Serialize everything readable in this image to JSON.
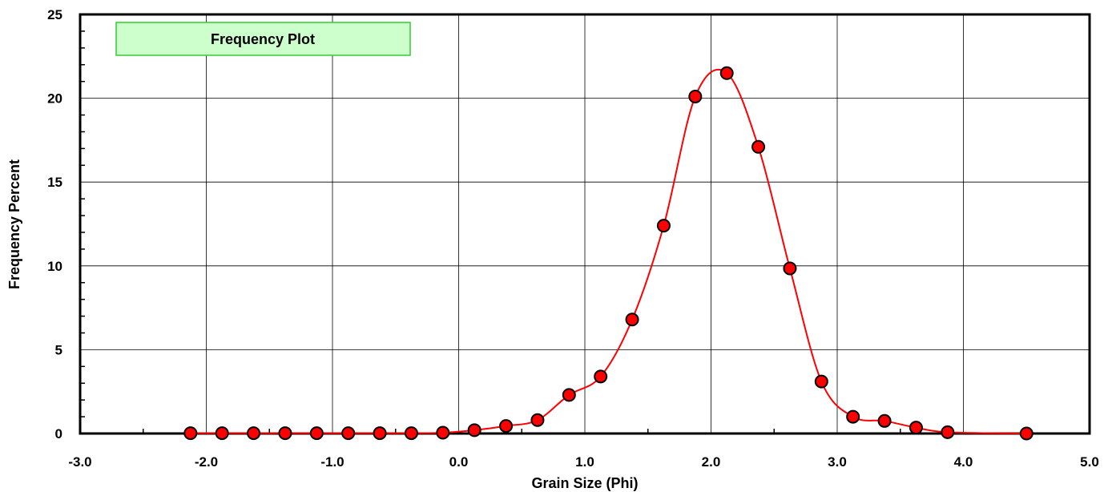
{
  "chart_data": {
    "type": "line",
    "title": "Frequency Plot",
    "xlabel": "Grain Size (Phi)",
    "ylabel": "Frequency Percent",
    "xlim": [
      -3.0,
      5.0
    ],
    "ylim": [
      0,
      25
    ],
    "x_ticks": [
      "-3.0",
      "-2.0",
      "-1.0",
      "0.0",
      "1.0",
      "2.0",
      "3.0",
      "4.0",
      "5.0"
    ],
    "y_ticks": [
      "0",
      "5",
      "10",
      "15",
      "20",
      "25"
    ],
    "grid": true,
    "series": [
      {
        "x": [
          -2.125,
          -1.875,
          -1.625,
          -1.375,
          -1.125,
          -0.875,
          -0.625,
          -0.375,
          -0.125,
          0.125,
          0.375,
          0.625,
          0.875,
          1.125,
          1.375,
          1.625,
          1.875,
          2.125,
          2.375,
          2.625,
          2.875,
          3.125,
          3.375,
          3.625,
          3.875,
          4.5
        ],
        "y": [
          0.02,
          0.02,
          0.02,
          0.02,
          0.02,
          0.02,
          0.02,
          0.02,
          0.05,
          0.2,
          0.45,
          0.8,
          2.3,
          3.4,
          6.8,
          12.4,
          20.1,
          21.5,
          17.1,
          9.85,
          3.1,
          1.0,
          0.75,
          0.35,
          0.08,
          0.0
        ]
      }
    ],
    "colors": {
      "line": "#ff0000",
      "marker_fill": "#ff0000",
      "marker_stroke": "#000000",
      "legend_fill": "#ccffcc",
      "legend_stroke": "#33cc33",
      "grid": "#000000"
    }
  }
}
